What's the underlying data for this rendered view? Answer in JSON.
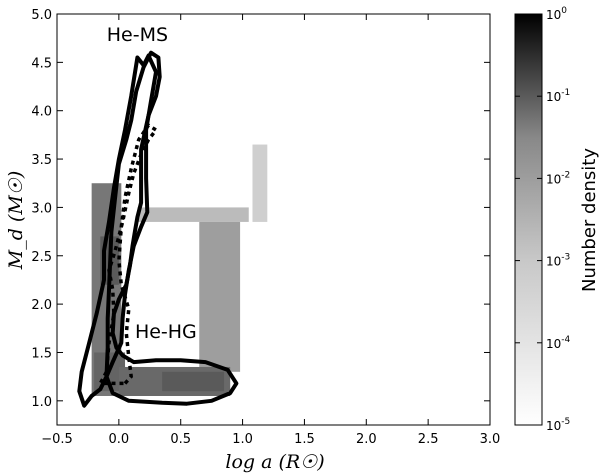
{
  "chart_data": {
    "type": "heatmap",
    "xlabel": "log a  (R☉)",
    "ylabel": "M_d  (M☉)",
    "xlim": [
      -0.5,
      3.0
    ],
    "ylim": [
      0.75,
      5.0
    ],
    "xticks": [
      -0.5,
      0.0,
      0.5,
      1.0,
      1.5,
      2.0,
      2.5,
      3.0
    ],
    "xtick_labels": [
      "−0.5",
      "0.0",
      "0.5",
      "1.0",
      "1.5",
      "2.0",
      "2.5",
      "3.0"
    ],
    "yticks": [
      1.0,
      1.5,
      2.0,
      2.5,
      3.0,
      3.5,
      4.0,
      4.5,
      5.0
    ],
    "ytick_labels": [
      "1.0",
      "1.5",
      "2.0",
      "2.5",
      "3.0",
      "3.5",
      "4.0",
      "4.5",
      "5.0"
    ],
    "colorbar": {
      "label": "Number density",
      "scale": "log",
      "range": [
        1e-05,
        1
      ],
      "ticks": [
        {
          "base": "10",
          "exp": "0",
          "value": 1
        },
        {
          "base": "10",
          "exp": "-1",
          "value": 0.1
        },
        {
          "base": "10",
          "exp": "-2",
          "value": 0.01
        },
        {
          "base": "10",
          "exp": "-3",
          "value": 0.001
        },
        {
          "base": "10",
          "exp": "-4",
          "value": 0.0001
        },
        {
          "base": "10",
          "exp": "-5",
          "value": 1e-05
        }
      ],
      "color_low": "#ffffff",
      "color_high": "#000000"
    },
    "annotations": [
      {
        "text": "He-MS",
        "x": 0.15,
        "y": 4.72
      },
      {
        "text": "He-HG",
        "x": 0.38,
        "y": 1.65
      }
    ],
    "density_regions": [
      {
        "name": "He-MS band",
        "x": [
          -0.22,
          0.02
        ],
        "y": [
          1.05,
          3.25
        ],
        "log_density": -2.2
      },
      {
        "name": "He-MS core",
        "x": [
          -0.15,
          0.0
        ],
        "y": [
          2.2,
          2.7
        ],
        "log_density": -1.6
      },
      {
        "name": "He-MS lower",
        "x": [
          -0.2,
          0.05
        ],
        "y": [
          1.1,
          1.5
        ],
        "log_density": -1.8
      },
      {
        "name": "horizontal branch",
        "x": [
          0.15,
          1.05
        ],
        "y": [
          2.85,
          3.0
        ],
        "log_density": -3.6
      },
      {
        "name": "He-HG vertical",
        "x": [
          0.65,
          0.98
        ],
        "y": [
          1.3,
          2.85
        ],
        "log_density": -3.0
      },
      {
        "name": "He-HG lower",
        "x": [
          0.0,
          0.9
        ],
        "y": [
          1.05,
          1.35
        ],
        "log_density": -1.9
      },
      {
        "name": "He-HG core",
        "x": [
          0.35,
          0.85
        ],
        "y": [
          1.1,
          1.3
        ],
        "log_density": -1.6
      },
      {
        "name": "upper spike",
        "x": [
          1.08,
          1.2
        ],
        "y": [
          2.85,
          3.65
        ],
        "log_density": -4.0
      }
    ],
    "contours": [
      {
        "style": "solid",
        "name": "outer contour",
        "points": [
          [
            0.12,
            1.4
          ],
          [
            0.03,
            1.47
          ],
          [
            -0.02,
            1.55
          ],
          [
            -0.05,
            1.7
          ],
          [
            -0.04,
            1.9
          ],
          [
            0.0,
            2.05
          ],
          [
            0.06,
            2.2
          ],
          [
            0.09,
            2.4
          ],
          [
            0.11,
            2.6
          ],
          [
            0.13,
            2.75
          ],
          [
            0.15,
            2.9
          ],
          [
            0.18,
            3.05
          ],
          [
            0.18,
            3.6
          ],
          [
            0.24,
            3.95
          ],
          [
            0.3,
            4.15
          ],
          [
            0.33,
            4.35
          ],
          [
            0.32,
            4.55
          ],
          [
            0.26,
            4.6
          ],
          [
            0.2,
            4.45
          ],
          [
            0.14,
            4.2
          ],
          [
            0.1,
            3.9
          ],
          [
            0.06,
            3.7
          ],
          [
            0.0,
            3.45
          ],
          [
            -0.03,
            3.1
          ],
          [
            -0.06,
            2.75
          ],
          [
            -0.07,
            2.45
          ],
          [
            -0.08,
            2.15
          ],
          [
            -0.09,
            1.85
          ],
          [
            -0.09,
            1.55
          ],
          [
            -0.1,
            1.25
          ],
          [
            -0.05,
            1.08
          ],
          [
            0.08,
            1.0
          ],
          [
            0.35,
            0.98
          ],
          [
            0.55,
            0.97
          ],
          [
            0.75,
            1.0
          ],
          [
            0.9,
            1.08
          ],
          [
            0.95,
            1.18
          ],
          [
            0.88,
            1.32
          ],
          [
            0.7,
            1.4
          ],
          [
            0.5,
            1.42
          ],
          [
            0.3,
            1.42
          ],
          [
            0.12,
            1.4
          ]
        ]
      },
      {
        "style": "solid",
        "name": "He-MS contour",
        "points": [
          [
            0.15,
            4.55
          ],
          [
            0.2,
            4.47
          ],
          [
            0.24,
            4.57
          ],
          [
            0.3,
            4.4
          ],
          [
            0.26,
            4.1
          ],
          [
            0.22,
            3.8
          ],
          [
            0.22,
            3.3
          ],
          [
            0.23,
            2.95
          ],
          [
            0.18,
            2.8
          ],
          [
            0.12,
            2.6
          ],
          [
            0.08,
            2.35
          ],
          [
            0.05,
            2.1
          ],
          [
            0.03,
            1.85
          ],
          [
            0.02,
            1.6
          ],
          [
            -0.05,
            1.4
          ],
          [
            -0.1,
            1.25
          ],
          [
            -0.15,
            1.12
          ],
          [
            -0.22,
            1.05
          ],
          [
            -0.28,
            0.95
          ],
          [
            -0.32,
            1.1
          ],
          [
            -0.3,
            1.3
          ],
          [
            -0.24,
            1.6
          ],
          [
            -0.18,
            1.9
          ],
          [
            -0.12,
            2.25
          ],
          [
            -0.12,
            2.55
          ],
          [
            -0.08,
            2.85
          ],
          [
            -0.04,
            3.2
          ],
          [
            0.0,
            3.5
          ],
          [
            0.05,
            3.8
          ],
          [
            0.1,
            4.15
          ],
          [
            0.15,
            4.55
          ]
        ]
      },
      {
        "style": "dotted",
        "name": "inner dotted contour",
        "points": [
          [
            0.05,
            1.18
          ],
          [
            0.1,
            1.25
          ],
          [
            0.08,
            1.45
          ],
          [
            0.06,
            1.7
          ],
          [
            0.08,
            1.95
          ],
          [
            0.02,
            2.2
          ],
          [
            0.0,
            2.45
          ],
          [
            0.02,
            2.8
          ],
          [
            0.05,
            3.1
          ],
          [
            0.1,
            3.4
          ],
          [
            0.16,
            3.7
          ],
          [
            0.24,
            3.85
          ],
          [
            0.3,
            3.8
          ],
          [
            0.24,
            3.7
          ],
          [
            0.18,
            3.55
          ],
          [
            0.12,
            3.35
          ],
          [
            0.08,
            3.15
          ],
          [
            0.03,
            2.85
          ],
          [
            -0.03,
            2.55
          ],
          [
            -0.08,
            2.35
          ],
          [
            -0.05,
            2.15
          ],
          [
            -0.04,
            1.9
          ],
          [
            -0.08,
            1.6
          ],
          [
            -0.1,
            1.3
          ],
          [
            -0.15,
            1.18
          ],
          [
            -0.05,
            1.18
          ],
          [
            0.05,
            1.18
          ]
        ]
      }
    ]
  }
}
